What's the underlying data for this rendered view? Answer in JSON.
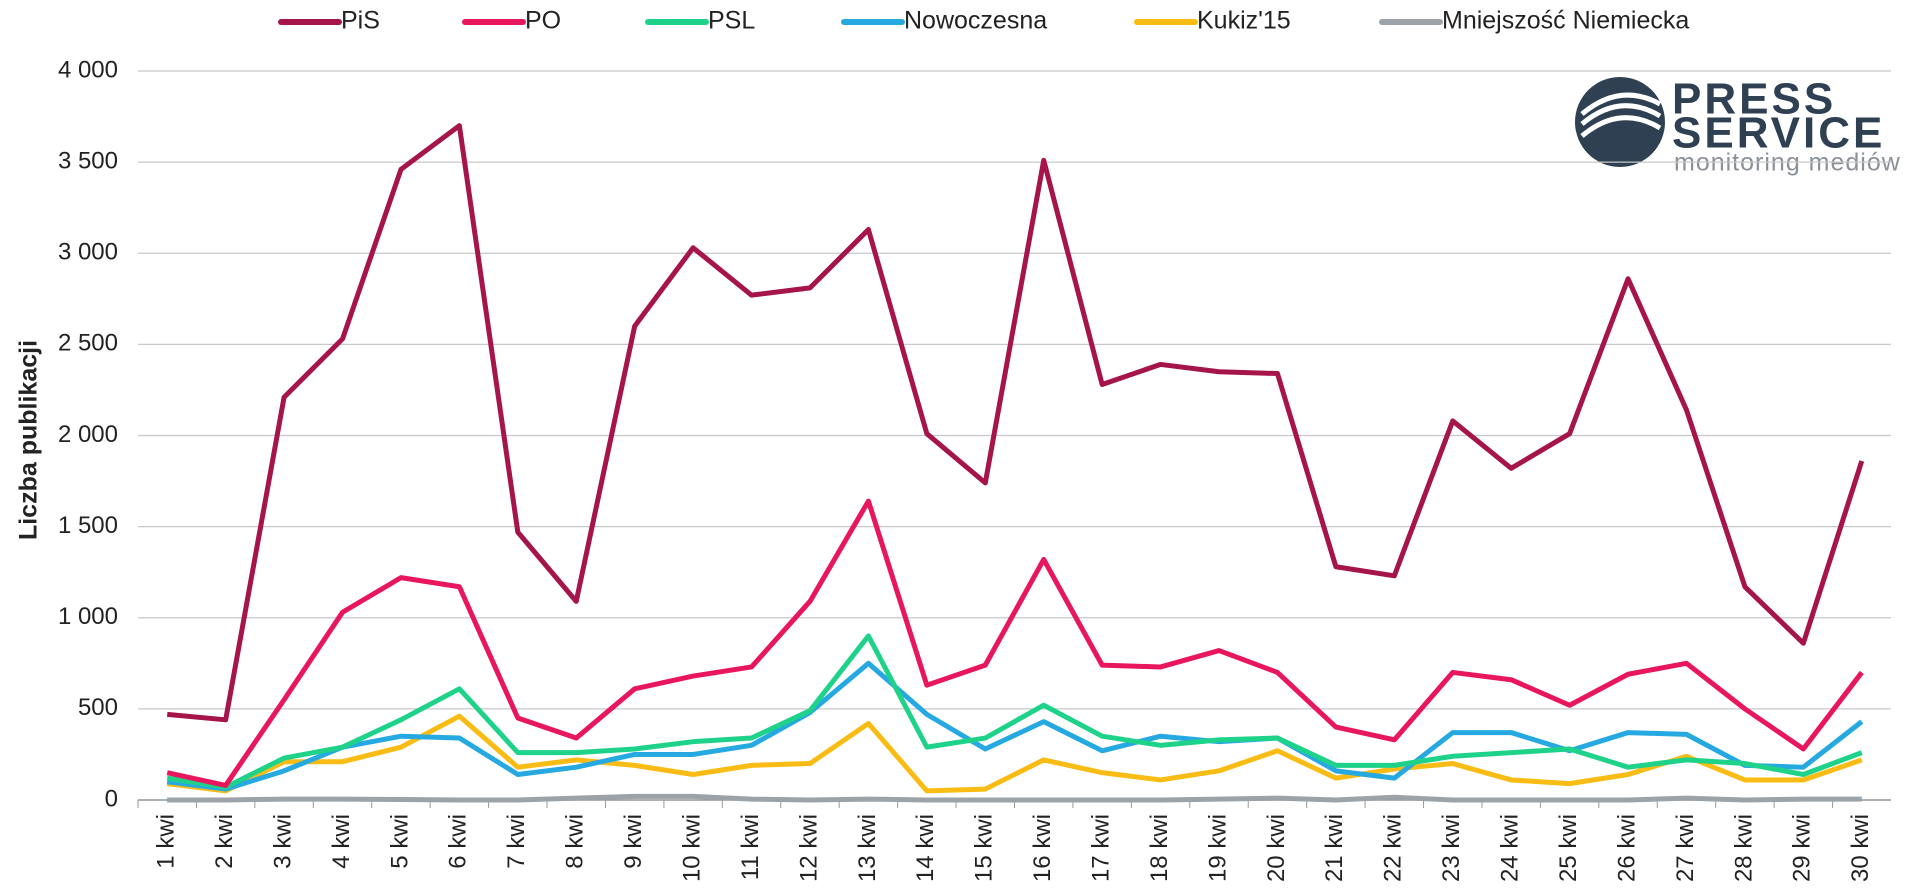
{
  "chart_data": {
    "type": "line",
    "ylabel": "Liczba publikacji",
    "categories": [
      "1 kwi",
      "2 kwi",
      "3 kwi",
      "4 kwi",
      "5 kwi",
      "6 kwi",
      "7 kwi",
      "8 kwi",
      "9 kwi",
      "10 kwi",
      "11 kwi",
      "12 kwi",
      "13 kwi",
      "14 kwi",
      "15 kwi",
      "16 kwi",
      "17 kwi",
      "18 kwi",
      "19 kwi",
      "20 kwi",
      "21 kwi",
      "22 kwi",
      "23 kwi",
      "24 kwi",
      "25 kwi",
      "26 kwi",
      "27 kwi",
      "28 kwi",
      "29 kwi",
      "30 kwi"
    ],
    "series": [
      {
        "name": "PiS",
        "color": "#a6154a",
        "values": [
          470,
          440,
          2210,
          2530,
          3460,
          3700,
          1470,
          1090,
          2600,
          3030,
          2770,
          2810,
          3130,
          2010,
          1740,
          3510,
          2280,
          2390,
          2350,
          2340,
          1280,
          1230,
          2080,
          1820,
          2010,
          2860,
          2140,
          1170,
          860,
          1860
        ]
      },
      {
        "name": "PO",
        "color": "#e8175d",
        "values": [
          150,
          80,
          550,
          1030,
          1220,
          1170,
          450,
          340,
          610,
          680,
          730,
          1090,
          1640,
          630,
          740,
          1320,
          740,
          730,
          820,
          700,
          400,
          330,
          700,
          660,
          520,
          690,
          750,
          500,
          280,
          700
        ]
      },
      {
        "name": "PSL",
        "color": "#1fd28a",
        "values": [
          120,
          70,
          230,
          290,
          440,
          610,
          260,
          260,
          280,
          320,
          340,
          490,
          900,
          290,
          340,
          520,
          350,
          300,
          330,
          340,
          190,
          190,
          240,
          260,
          280,
          180,
          220,
          200,
          140,
          260
        ]
      },
      {
        "name": "Nowoczesna",
        "color": "#26a9e0",
        "values": [
          100,
          60,
          160,
          290,
          350,
          340,
          140,
          180,
          250,
          250,
          300,
          480,
          750,
          470,
          280,
          430,
          270,
          350,
          320,
          340,
          160,
          120,
          370,
          370,
          270,
          370,
          360,
          190,
          180,
          430
        ]
      },
      {
        "name": "Kukiz'15",
        "color": "#f9bc15",
        "values": [
          90,
          50,
          210,
          210,
          290,
          460,
          180,
          220,
          190,
          140,
          190,
          200,
          420,
          50,
          60,
          220,
          150,
          110,
          160,
          270,
          120,
          170,
          200,
          110,
          90,
          140,
          240,
          110,
          110,
          220
        ]
      },
      {
        "name": "Mniejszość Niemiecka",
        "color": "#9ba3a8",
        "values": [
          0,
          0,
          5,
          5,
          3,
          0,
          0,
          10,
          20,
          20,
          5,
          0,
          5,
          0,
          0,
          0,
          0,
          0,
          5,
          10,
          0,
          15,
          0,
          0,
          0,
          0,
          10,
          0,
          5,
          5
        ]
      }
    ],
    "ylim": [
      0,
      4000
    ],
    "yticks": [
      0,
      500,
      {
        "value": 1000,
        "label": "1 000"
      },
      {
        "value": 1500,
        "label": "1 500"
      },
      {
        "value": 2000,
        "label": "2 000"
      },
      {
        "value": 2500,
        "label": "2 500"
      },
      {
        "value": 3000,
        "label": "3 000"
      },
      {
        "value": 3500,
        "label": "3 500"
      },
      {
        "value": 4000,
        "label": "4 000"
      }
    ],
    "grid": true,
    "legend": "top"
  },
  "logo": {
    "line1": "PRESS",
    "line2": "SERVICE",
    "tagline": "monitoring mediów"
  }
}
